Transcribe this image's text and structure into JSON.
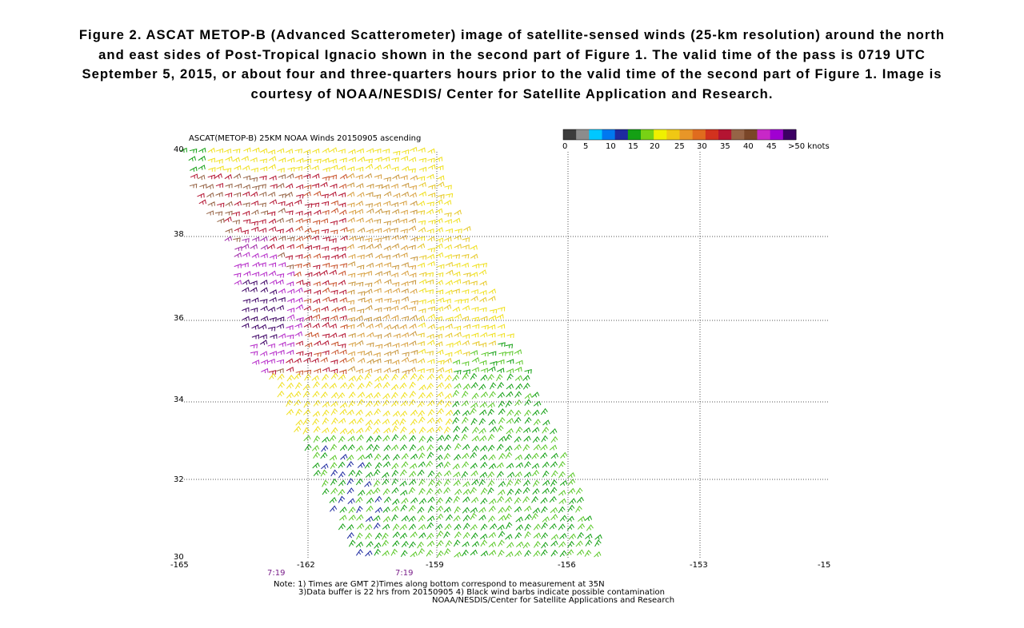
{
  "caption": "Figure 2.  ASCAT METOP-B (Advanced Scatterometer) image of satellite-sensed winds (25-km resolution) around the north and east sides of Post-Tropical Ignacio shown in the second part of Figure 1.  The valid time of the pass is 0719 UTC September 5, 2015, or about four and three-quarters hours prior to the valid time of the second part of Figure 1.  Image is courtesy of NOAA/NESDIS/ Center for Satellite Application and Research.",
  "map": {
    "title": "ASCAT(METOP-B) 25KM NOAA Winds 20150905 ascending",
    "lat_labels": [
      "40",
      "38",
      "36",
      "34",
      "32",
      "30"
    ],
    "lon_labels": [
      "-165",
      "-162",
      "-159",
      "-156",
      "-153",
      "-15"
    ],
    "time_labels": [
      "7:19",
      "7:19"
    ],
    "time_color": "#7a1f8a"
  },
  "legend": {
    "labels": [
      "0",
      "5",
      "10",
      "15",
      "20",
      "25",
      "30",
      "35",
      "40",
      "45",
      ">50 knots"
    ],
    "colors": [
      "#3c3c3c",
      "#8c8c8c",
      "#00c8ff",
      "#0078f0",
      "#1e2aa0",
      "#14a014",
      "#78d214",
      "#f0f000",
      "#f0c814",
      "#e89628",
      "#e06c1e",
      "#d2321e",
      "#b41432",
      "#966446",
      "#7a4628",
      "#c828c8",
      "#a000d2",
      "#3c0064"
    ]
  },
  "notes": {
    "line1": "Note: 1) Times are GMT 2)Times along bottom correspond to measurement at 35N",
    "line2": "3)Data buffer is 22 hrs from 20150905 4) Black wind barbs indicate possible contamination",
    "line3": "NOAA/NESDIS/Center for Satellite Applications and Research"
  }
}
